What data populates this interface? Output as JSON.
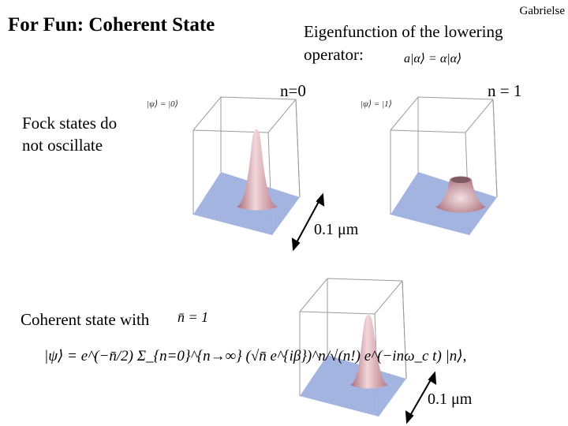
{
  "slide": {
    "title": "For Fun: Coherent State",
    "author": "Gabrielse",
    "eigen_text": "Eigenfunction of the lowering operator:",
    "eigen_equation": "a|α⟩ = α|α⟩",
    "n0_label": "n=0",
    "n1_label": "n = 1",
    "fock_text": "Fock states do not oscillate",
    "psi_n0": "|ψ⟩ = |0⟩",
    "psi_n1": "|ψ⟩ = |1⟩",
    "scale_label_1": "0.1 μm",
    "scale_label_2": "0.1 μm",
    "coherent_text": "Coherent state with",
    "nbar_equation": "n̄ = 1",
    "coherent_formula": "|ψ⟩ = e^(−n̄/2) Σ_{n=0}^{n→∞} (√n̄ e^{iβ})^n/√(n!) e^(−inω_c t) |n⟩,"
  },
  "colors": {
    "plate_fill": "#9fb0df",
    "peak_light": "#f2d6da",
    "peak_dark": "#a66a78",
    "box_line": "#9a9a9a"
  },
  "icons": [
    "double-arrow-icon"
  ]
}
